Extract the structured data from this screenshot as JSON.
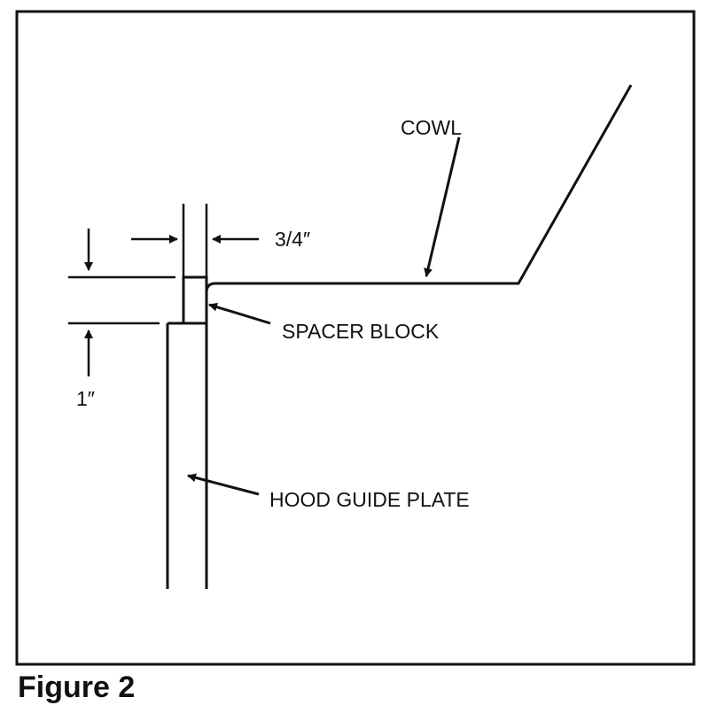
{
  "figure": {
    "caption": "Figure 2"
  },
  "labels": {
    "cowl": "COWL",
    "spacer_block": "SPACER BLOCK",
    "hood_guide_plate": "HOOD GUIDE PLATE"
  },
  "dimensions": {
    "width": "3/4″",
    "height": "1″"
  },
  "colors": {
    "ink": "#111111",
    "background": "#ffffff"
  }
}
